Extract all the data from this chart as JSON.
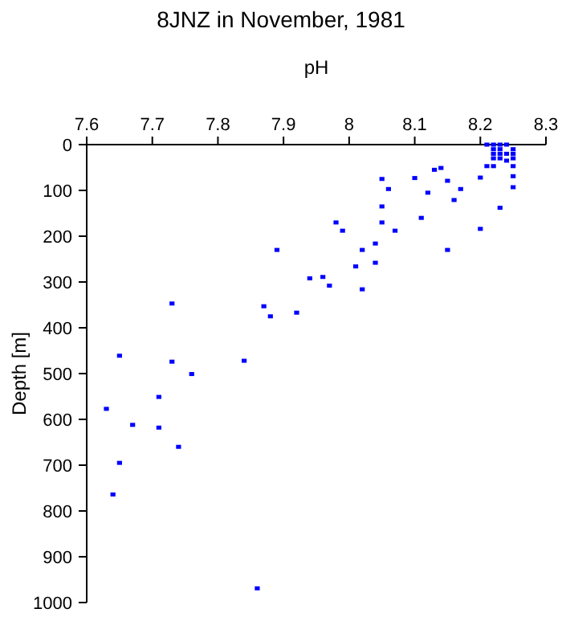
{
  "chart_data": {
    "type": "scatter",
    "title": "8JNZ in November, 1981",
    "xlabel": "pH",
    "ylabel": "Depth [m]",
    "xlim": [
      7.6,
      8.3
    ],
    "xticks": [
      7.6,
      7.7,
      7.8,
      7.9,
      8,
      8.1,
      8.2,
      8.3
    ],
    "ylim": [
      1000,
      0
    ],
    "yticks": [
      0,
      100,
      200,
      300,
      400,
      500,
      600,
      700,
      800,
      900,
      1000
    ],
    "grid": false,
    "marker": "square",
    "series": [
      {
        "color": "#0000ff",
        "x": [
          8.21,
          8.22,
          8.23,
          8.24,
          8.22,
          8.22,
          8.22,
          8.23,
          8.23,
          8.23,
          8.24,
          8.25,
          8.25,
          8.25,
          8.24,
          8.21,
          8.22,
          8.25,
          8.13,
          8.14,
          8.2,
          8.25,
          8.05,
          8.1,
          8.15,
          8.06,
          8.17,
          8.25,
          8.12,
          8.16,
          8.05,
          8.23,
          7.98,
          8.05,
          8.11,
          7.99,
          8.07,
          8.2,
          7.89,
          8.02,
          8.15,
          8.04,
          8.01,
          8.04,
          7.94,
          7.96,
          7.97,
          8.02,
          7.73,
          7.87,
          7.88,
          7.92,
          7.65,
          7.73,
          7.84,
          7.76,
          7.71,
          7.63,
          7.67,
          7.71,
          7.74,
          7.65,
          7.64,
          7.86
        ],
        "values": [
          0,
          0,
          0,
          0,
          10,
          20,
          30,
          10,
          20,
          30,
          20,
          10,
          20,
          30,
          35,
          47,
          47,
          47,
          55,
          51,
          72,
          69,
          75,
          73,
          79,
          97,
          97,
          93,
          105,
          121,
          135,
          138,
          170,
          170,
          160,
          188,
          188,
          184,
          230,
          230,
          230,
          216,
          266,
          258,
          292,
          289,
          308,
          316,
          347,
          353,
          375,
          367,
          461,
          474,
          472,
          501,
          551,
          577,
          612,
          618,
          660,
          695,
          764,
          969
        ]
      }
    ]
  }
}
